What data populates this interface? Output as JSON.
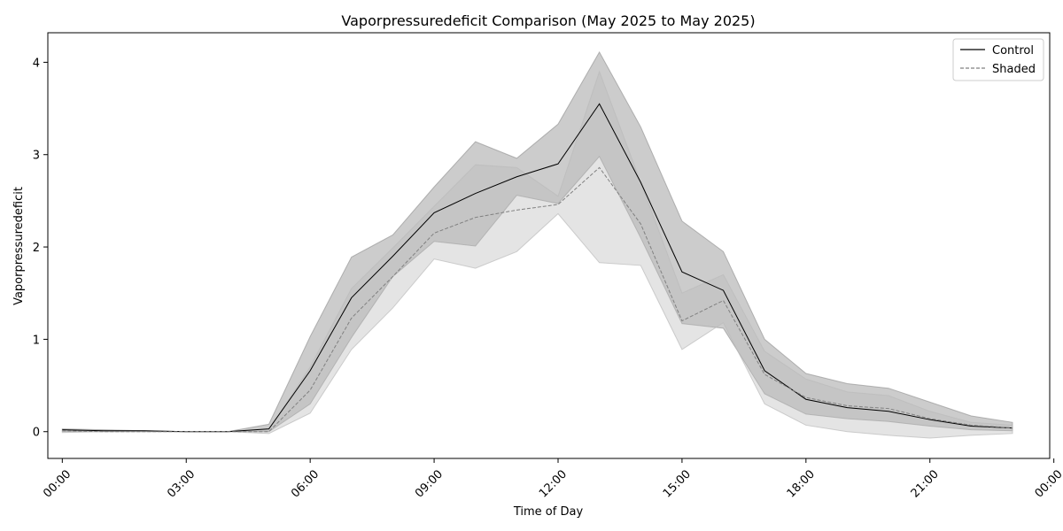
{
  "chart_data": {
    "type": "line",
    "title": "Vaporpressuredeficit Comparison (May 2025 to May 2025)",
    "xlabel": "Time of Day",
    "ylabel": "Vaporpressuredeficit",
    "x_unit": "hour",
    "xlim": [
      -0.35,
      23.9
    ],
    "ylim": [
      -0.29,
      4.32
    ],
    "x_ticks": [
      0,
      3,
      6,
      9,
      12,
      15,
      18,
      21,
      24
    ],
    "x_tick_labels": [
      "00:00",
      "03:00",
      "06:00",
      "09:00",
      "12:00",
      "15:00",
      "18:00",
      "21:00",
      "00:00"
    ],
    "y_ticks": [
      0,
      1,
      2,
      3,
      4
    ],
    "y_tick_labels": [
      "0",
      "1",
      "2",
      "3",
      "4"
    ],
    "x": [
      0,
      1,
      2,
      3,
      4,
      5,
      6,
      7,
      8,
      9,
      10,
      11,
      12,
      13,
      14,
      15,
      16,
      17,
      18,
      19,
      20,
      21,
      22,
      23
    ],
    "grid": false,
    "legend_position": "top-right",
    "series": [
      {
        "name": "Control",
        "color": "#000000",
        "dash": "solid",
        "values": [
          0.02,
          0.01,
          0.01,
          0.0,
          0.0,
          0.03,
          0.66,
          1.45,
          1.9,
          2.37,
          2.58,
          2.76,
          2.9,
          3.55,
          2.7,
          1.73,
          1.53,
          0.66,
          0.35,
          0.26,
          0.22,
          0.13,
          0.06,
          0.04
        ],
        "band_low": [
          0.0,
          0.0,
          0.0,
          0.0,
          0.0,
          0.0,
          0.3,
          1.02,
          1.68,
          2.06,
          2.01,
          2.56,
          2.47,
          2.98,
          2.1,
          1.17,
          1.12,
          0.41,
          0.19,
          0.14,
          0.11,
          0.06,
          0.02,
          0.01
        ],
        "band_high": [
          0.03,
          0.02,
          0.01,
          0.0,
          0.0,
          0.08,
          1.03,
          1.89,
          2.13,
          2.65,
          3.14,
          2.96,
          3.33,
          4.11,
          3.3,
          2.28,
          1.95,
          1.0,
          0.63,
          0.52,
          0.47,
          0.32,
          0.17,
          0.1
        ]
      },
      {
        "name": "Shaded",
        "color": "#808080",
        "dash": "dashed",
        "values": [
          0.01,
          0.0,
          0.0,
          0.0,
          0.0,
          0.0,
          0.45,
          1.23,
          1.68,
          2.15,
          2.32,
          2.4,
          2.46,
          2.86,
          2.25,
          1.2,
          1.42,
          0.62,
          0.37,
          0.28,
          0.25,
          0.14,
          0.07,
          0.04
        ],
        "band_low": [
          -0.01,
          0.0,
          0.0,
          0.0,
          0.0,
          -0.02,
          0.2,
          0.89,
          1.34,
          1.87,
          1.77,
          1.95,
          2.36,
          1.83,
          1.8,
          0.89,
          1.18,
          0.3,
          0.07,
          0.0,
          -0.04,
          -0.07,
          -0.04,
          -0.02
        ],
        "band_high": [
          0.02,
          0.0,
          0.0,
          0.0,
          0.0,
          0.02,
          0.7,
          1.55,
          1.99,
          2.44,
          2.89,
          2.86,
          2.55,
          3.9,
          2.7,
          1.5,
          1.7,
          0.87,
          0.57,
          0.43,
          0.39,
          0.22,
          0.1,
          0.07
        ]
      }
    ]
  }
}
